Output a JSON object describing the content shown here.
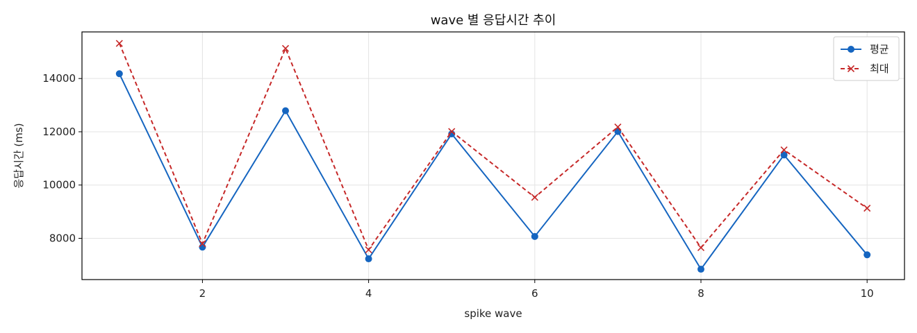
{
  "chart_data": {
    "type": "line",
    "title": "wave 별 응답시간 추이",
    "xlabel": "spike wave",
    "ylabel": "응답시간 (ms)",
    "x": [
      1,
      2,
      3,
      4,
      5,
      6,
      7,
      8,
      9,
      10
    ],
    "xlim": [
      0.55,
      10.45
    ],
    "ylim": [
      6450,
      15750
    ],
    "xticks": [
      2,
      4,
      6,
      8,
      10
    ],
    "yticks": [
      8000,
      10000,
      12000,
      14000
    ],
    "grid": true,
    "legend_position": "top-right",
    "series": [
      {
        "name": "평균",
        "color": "#1565c0",
        "line_style": "solid",
        "marker": "circle",
        "values": [
          14180,
          7670,
          12790,
          7230,
          11920,
          8070,
          12010,
          6840,
          11130,
          7380
        ]
      },
      {
        "name": "최대",
        "color": "#c62828",
        "line_style": "dashed",
        "marker": "x",
        "values": [
          15320,
          7800,
          15130,
          7570,
          12010,
          9540,
          12180,
          7650,
          11320,
          9130
        ]
      }
    ]
  }
}
